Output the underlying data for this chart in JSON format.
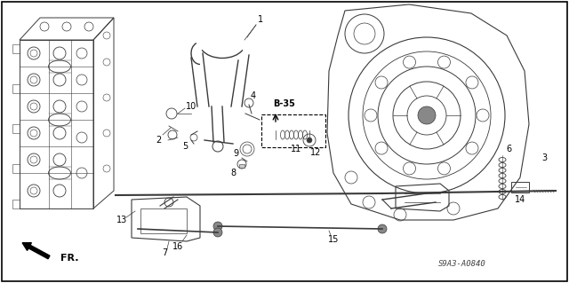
{
  "background_color": "#ffffff",
  "border_color": "#000000",
  "diagram_code": "S9A3-A0840",
  "ref_code": "B-35",
  "fr_label": "FR.",
  "line_color": "#3a3a3a",
  "figsize": [
    6.4,
    3.19
  ],
  "dpi": 100,
  "image_b64": ""
}
